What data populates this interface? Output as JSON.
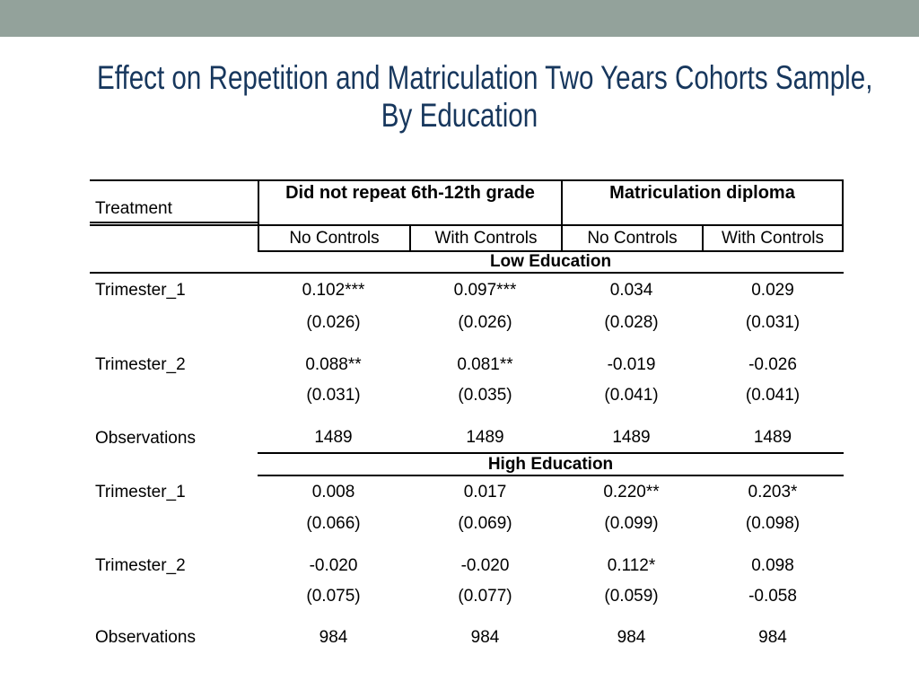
{
  "slide": {
    "accent_color": "#93a29b",
    "title_color": "#17375d",
    "title_line1": "Effect on Repetition and Matriculation Two Years Cohorts Sample,",
    "title_line2": "By Education"
  },
  "table": {
    "corner_label": "Treatment",
    "col_groups": [
      {
        "label": "Did not repeat 6th-12th grade",
        "sub": [
          "No Controls",
          "With Controls"
        ]
      },
      {
        "label": "Matriculation diploma",
        "sub": [
          "No Controls",
          "With Controls"
        ]
      }
    ],
    "sections": [
      {
        "label": "Low Education",
        "rows": [
          {
            "label": "Trimester_1",
            "cells": [
              "0.102***",
              "0.097***",
              "0.034",
              "0.029"
            ]
          },
          {
            "label": "",
            "cells": [
              "(0.026)",
              "(0.026)",
              "(0.028)",
              "(0.031)"
            ]
          },
          {
            "label": "Trimester_2",
            "cells": [
              "0.088**",
              "0.081**",
              "-0.019",
              "-0.026"
            ]
          },
          {
            "label": "",
            "cells": [
              "(0.031)",
              "(0.035)",
              "(0.041)",
              "(0.041)"
            ]
          },
          {
            "label": "Observations",
            "cells": [
              "1489",
              "1489",
              "1489",
              "1489"
            ]
          }
        ]
      },
      {
        "label": "High Education",
        "rows": [
          {
            "label": "Trimester_1",
            "cells": [
              "0.008",
              "0.017",
              "0.220**",
              "0.203*"
            ]
          },
          {
            "label": "",
            "cells": [
              "(0.066)",
              "(0.069)",
              "(0.099)",
              "(0.098)"
            ]
          },
          {
            "label": "Trimester_2",
            "cells": [
              "-0.020",
              "-0.020",
              "0.112*",
              "0.098"
            ]
          },
          {
            "label": "",
            "cells": [
              "(0.075)",
              "(0.077)",
              "(0.059)",
              "-0.058"
            ]
          },
          {
            "label": "Observations",
            "cells": [
              "984",
              "984",
              "984",
              "984"
            ]
          }
        ]
      }
    ]
  }
}
